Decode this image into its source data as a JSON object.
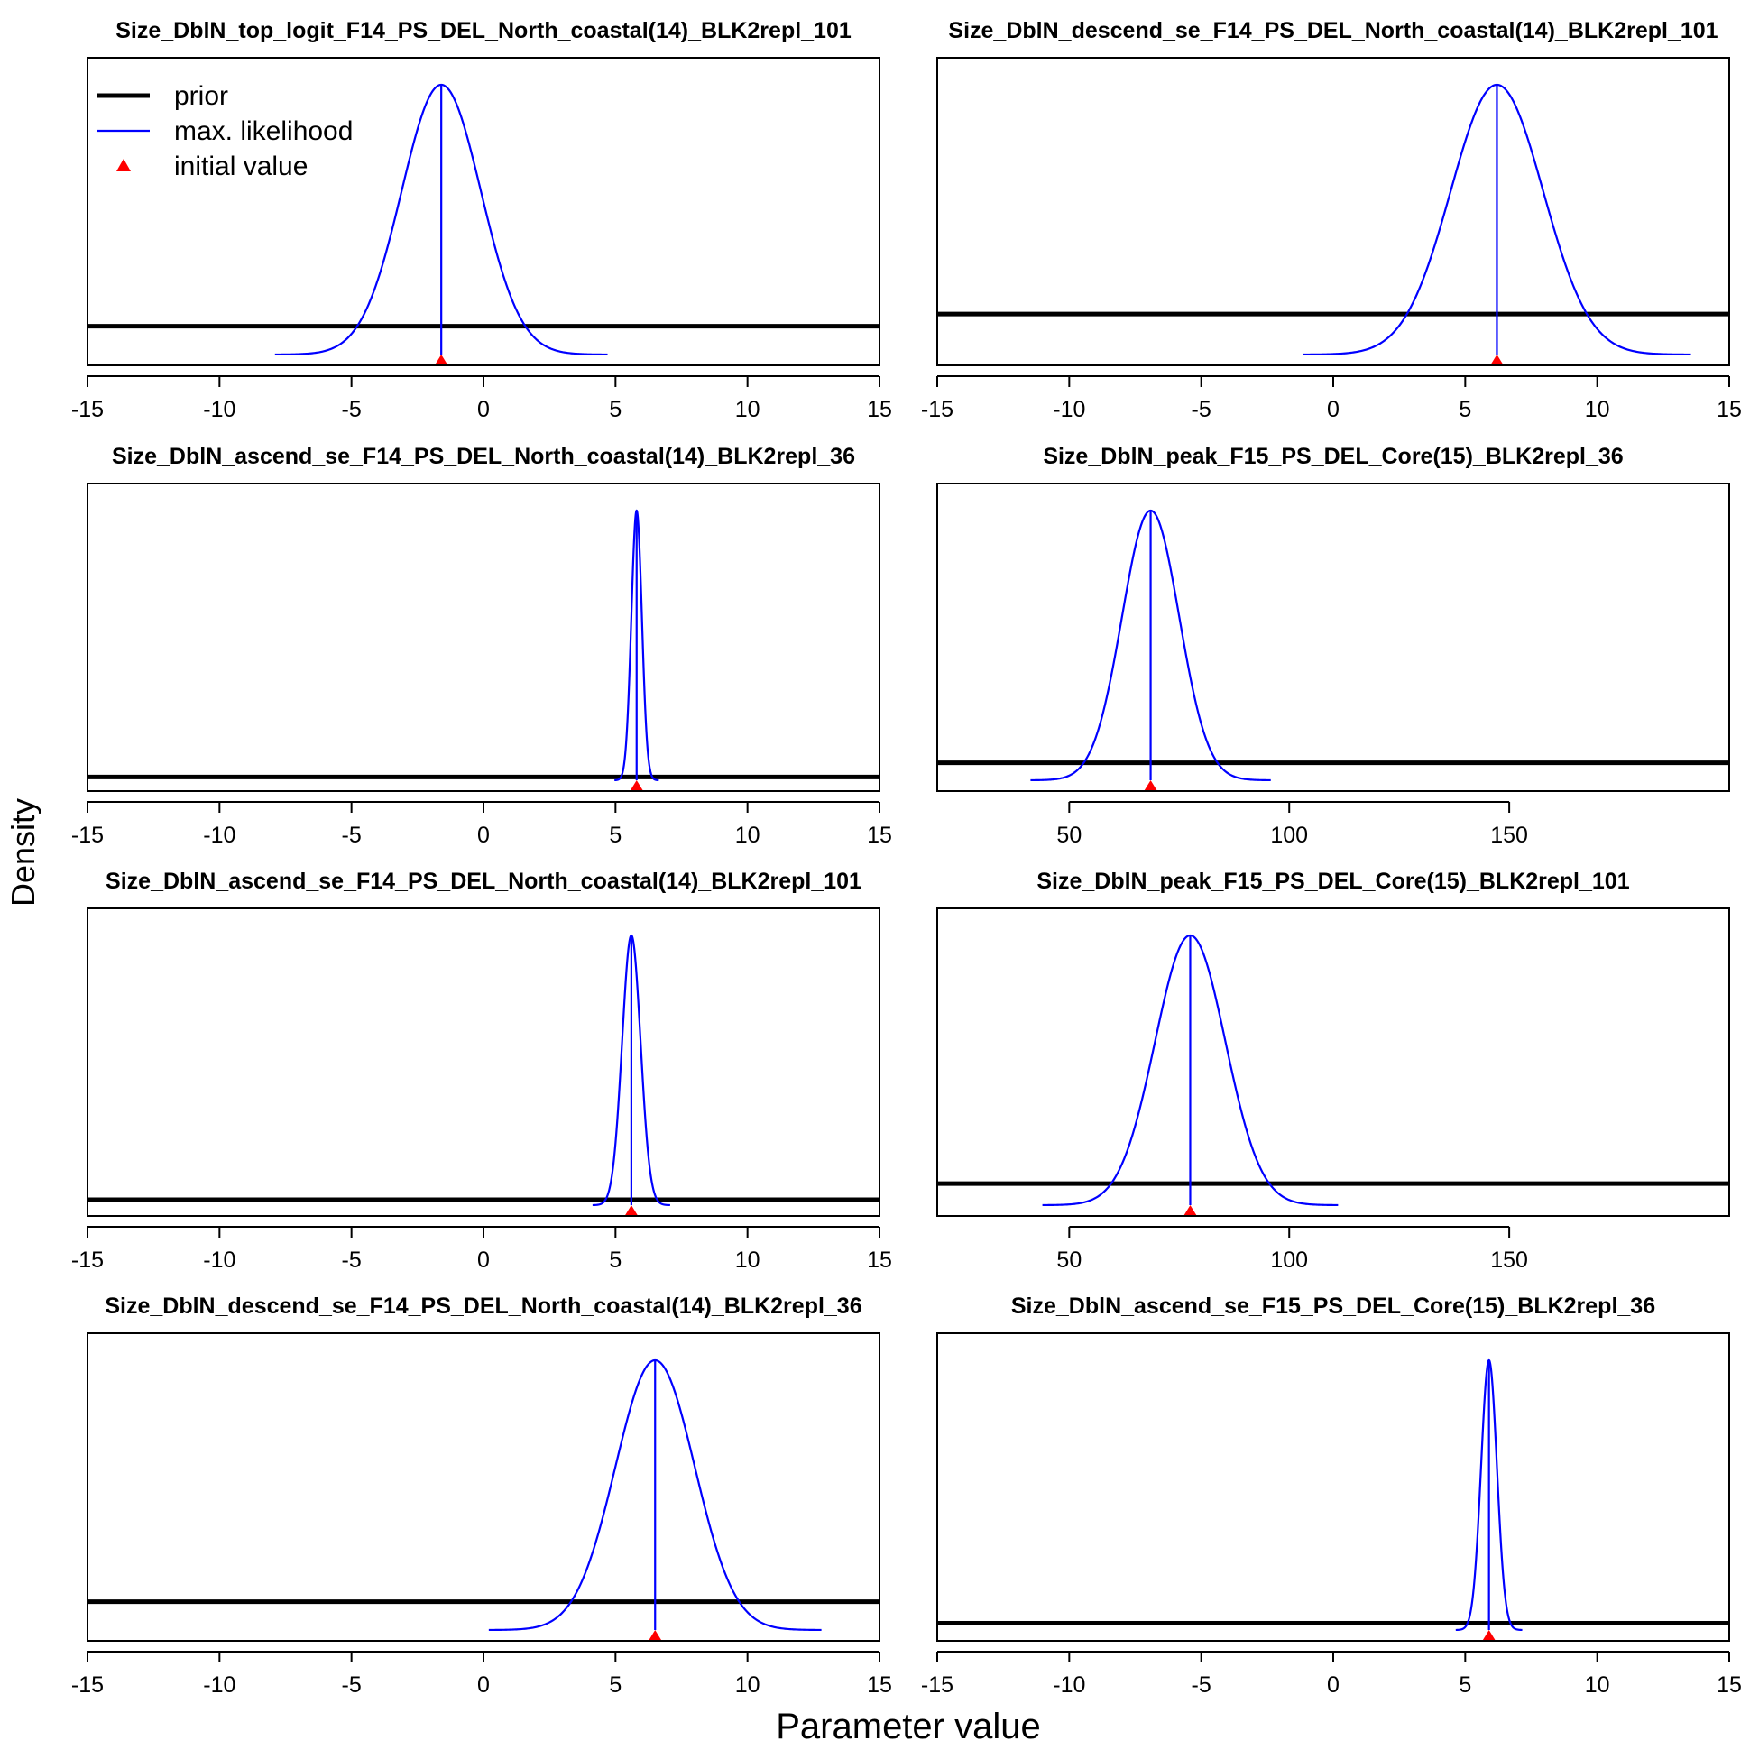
{
  "figure": {
    "ylabel": "Density",
    "xlabel": "Parameter value",
    "legend": {
      "placement": "top-left of first panel",
      "entries": [
        {
          "label": "prior",
          "style": "line",
          "color": "#000000"
        },
        {
          "label": "max. likelihood",
          "style": "line",
          "color": "#0000ff"
        },
        {
          "label": "initial value",
          "style": "triangle",
          "color": "#ff0000"
        }
      ]
    },
    "colors": {
      "prior": "#000000",
      "mle": "#0000ff",
      "initial": "#ff0000"
    }
  },
  "chart_data": [
    {
      "type": "line",
      "title": "Size_DblN_top_logit_F14_PS_DEL_North_coastal(14)_BLK2repl_101",
      "xlim": [
        -15,
        15
      ],
      "xticks": [
        -15,
        -10,
        -5,
        0,
        5,
        10,
        15
      ],
      "mle": -1.6,
      "sd": 1.5,
      "initial": -1.6,
      "prior_rel": 0.105
    },
    {
      "type": "line",
      "title": "Size_DblN_descend_se_F14_PS_DEL_North_coastal(14)_BLK2repl_101",
      "xlim": [
        -15,
        15
      ],
      "xticks": [
        -15,
        -10,
        -5,
        0,
        5,
        10,
        15
      ],
      "mle": 6.2,
      "sd": 1.75,
      "initial": 6.2,
      "prior_rel": 0.15
    },
    {
      "type": "line",
      "title": "Size_DblN_ascend_se_F14_PS_DEL_North_coastal(14)_BLK2repl_36",
      "xlim": [
        -15,
        15
      ],
      "xticks": [
        -15,
        -10,
        -5,
        0,
        5,
        10,
        15
      ],
      "mle": 5.8,
      "sd": 0.2,
      "initial": 5.8,
      "prior_rel": 0.012
    },
    {
      "type": "line",
      "title": "Size_DblN_peak_F15_PS_DEL_Core(15)_BLK2repl_36",
      "xlim": [
        20,
        200
      ],
      "xticks": [
        50,
        100,
        150
      ],
      "mle": 68.5,
      "sd": 6.5,
      "initial": 68.5,
      "prior_rel": 0.065
    },
    {
      "type": "line",
      "title": "Size_DblN_ascend_se_F14_PS_DEL_North_coastal(14)_BLK2repl_101",
      "xlim": [
        -15,
        15
      ],
      "xticks": [
        -15,
        -10,
        -5,
        0,
        5,
        10,
        15
      ],
      "mle": 5.6,
      "sd": 0.35,
      "initial": 5.6,
      "prior_rel": 0.02
    },
    {
      "type": "line",
      "title": "Size_DblN_peak_F15_PS_DEL_Core(15)_BLK2repl_101",
      "xlim": [
        20,
        200
      ],
      "xticks": [
        50,
        100,
        150
      ],
      "mle": 77.5,
      "sd": 8,
      "initial": 77.5,
      "prior_rel": 0.08
    },
    {
      "type": "line",
      "title": "Size_DblN_descend_se_F14_PS_DEL_North_coastal(14)_BLK2repl_36",
      "xlim": [
        -15,
        15
      ],
      "xticks": [
        -15,
        -10,
        -5,
        0,
        5,
        10,
        15
      ],
      "mle": 6.5,
      "sd": 1.5,
      "initial": 6.5,
      "prior_rel": 0.105
    },
    {
      "type": "line",
      "title": "Size_DblN_ascend_se_F15_PS_DEL_Core(15)_BLK2repl_36",
      "xlim": [
        -15,
        15
      ],
      "xticks": [
        -15,
        -10,
        -5,
        0,
        5,
        10,
        15
      ],
      "mle": 5.9,
      "sd": 0.3,
      "initial": 5.9,
      "prior_rel": 0.025
    }
  ]
}
